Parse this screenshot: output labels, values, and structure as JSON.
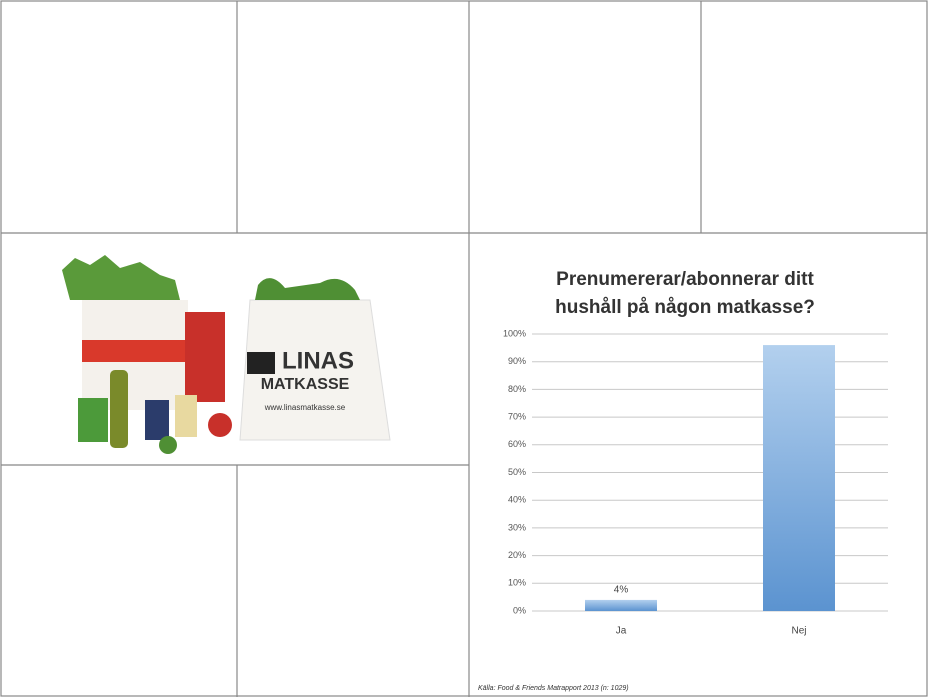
{
  "image": {
    "logo": [
      "LINAS",
      "MATKASSE"
    ],
    "url": "www.linasmatkasse.se"
  },
  "chart_data": {
    "type": "bar",
    "title": [
      "Prenumererar/abonnerar ditt",
      "hushåll på någon matkasse?"
    ],
    "categories": [
      "Ja",
      "Nej"
    ],
    "values": [
      4,
      96
    ],
    "value_labels": [
      "4%",
      null
    ],
    "color": "#6a9fd8",
    "ylim": [
      0,
      100
    ],
    "yticks": [
      {
        "value": 0,
        "label": "0%"
      },
      {
        "value": 10,
        "label": "10%"
      },
      {
        "value": 20,
        "label": "20%"
      },
      {
        "value": 30,
        "label": "30%"
      },
      {
        "value": 40,
        "label": "40%"
      },
      {
        "value": 50,
        "label": "50%"
      },
      {
        "value": 60,
        "label": "60%"
      },
      {
        "value": 70,
        "label": "70%"
      },
      {
        "value": 80,
        "label": "80%"
      },
      {
        "value": 90,
        "label": "90%"
      },
      {
        "value": 100,
        "label": "100%"
      }
    ],
    "grid": true,
    "source": "Källa: Food & Friends Matrapport 2013  (n: 1029)"
  }
}
